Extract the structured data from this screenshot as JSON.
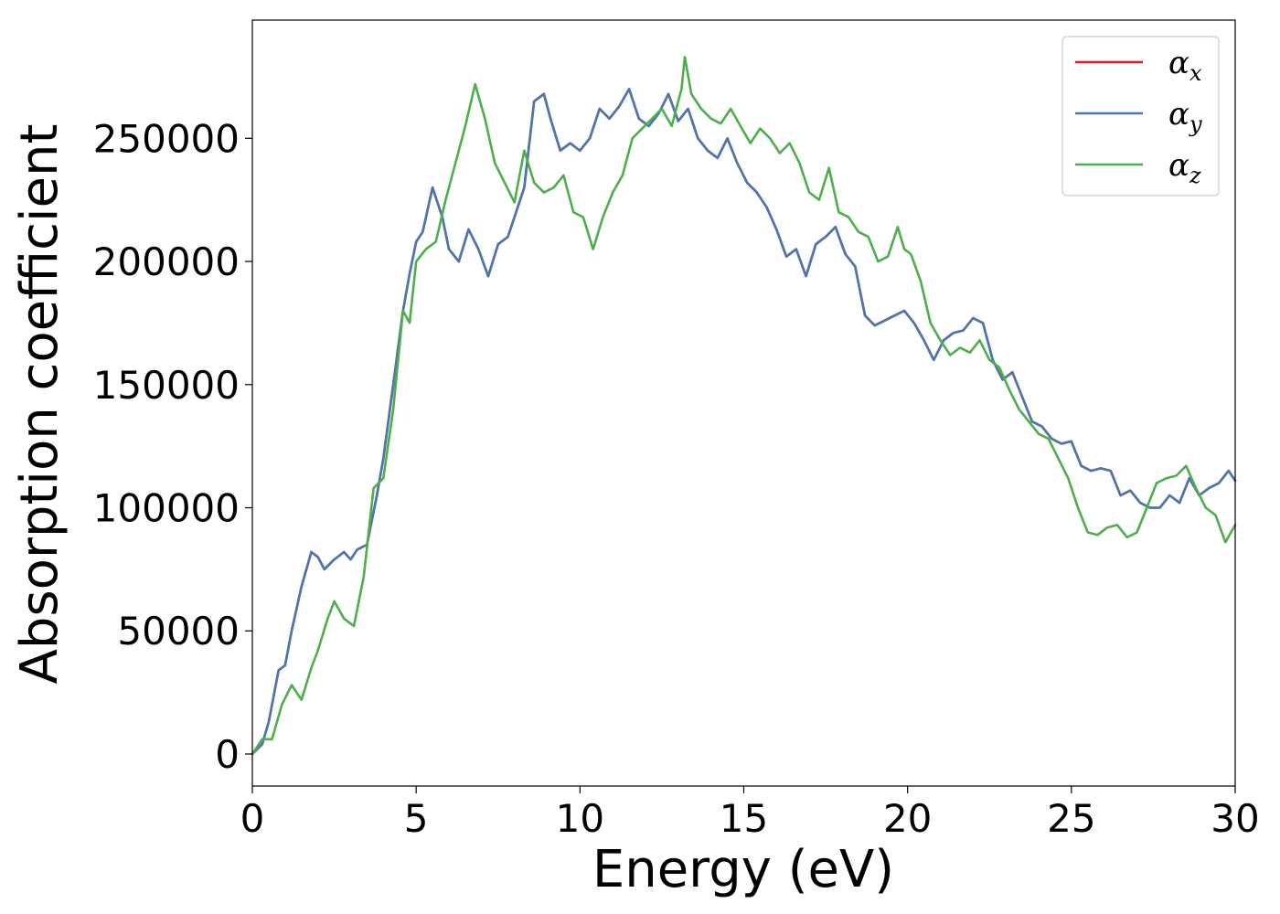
{
  "chart_data": {
    "type": "line",
    "title": "",
    "xlabel": "Energy (eV)",
    "ylabel": "Absorption coefficient",
    "xlim": [
      0,
      30
    ],
    "ylim": [
      -13000,
      298000
    ],
    "xticks": [
      0,
      5,
      10,
      15,
      20,
      25,
      30
    ],
    "xtick_labels": [
      "0",
      "5",
      "10",
      "15",
      "20",
      "25",
      "30"
    ],
    "yticks": [
      0,
      50000,
      100000,
      150000,
      200000,
      250000
    ],
    "ytick_labels": [
      "0",
      "50000",
      "100000",
      "150000",
      "200000",
      "250000"
    ],
    "grid": false,
    "legend_position": "top-right",
    "series": [
      {
        "name": "α",
        "subscript": "x",
        "color": "#e41a1c",
        "hidden_under": "α_y",
        "x": [
          0,
          0.3,
          0.5,
          0.8,
          1.0,
          1.2,
          1.5,
          1.8,
          2.0,
          2.2,
          2.5,
          2.8,
          3.0,
          3.2,
          3.5,
          3.8,
          4.0,
          4.3,
          4.6,
          4.8,
          5.0,
          5.2,
          5.5,
          5.8,
          6.0,
          6.3,
          6.6,
          6.9,
          7.2,
          7.5,
          7.8,
          8.0,
          8.3,
          8.6,
          8.9,
          9.1,
          9.4,
          9.7,
          10.0,
          10.3,
          10.6,
          10.9,
          11.2,
          11.5,
          11.8,
          12.1,
          12.4,
          12.7,
          13.0,
          13.3,
          13.6,
          13.9,
          14.2,
          14.5,
          14.8,
          15.1,
          15.4,
          15.7,
          16.0,
          16.3,
          16.6,
          16.9,
          17.2,
          17.5,
          17.8,
          18.1,
          18.4,
          18.7,
          19.0,
          19.3,
          19.6,
          19.9,
          20.2,
          20.5,
          20.8,
          21.1,
          21.4,
          21.7,
          22.0,
          22.3,
          22.6,
          22.9,
          23.2,
          23.5,
          23.8,
          24.1,
          24.4,
          24.7,
          25.0,
          25.3,
          25.6,
          25.9,
          26.2,
          26.5,
          26.8,
          27.1,
          27.4,
          27.7,
          28.0,
          28.3,
          28.6,
          28.9,
          29.2,
          29.5,
          29.8,
          30.0
        ],
        "values": [
          0,
          4000,
          13000,
          34000,
          36000,
          50000,
          68000,
          82000,
          80000,
          75000,
          79000,
          82000,
          79000,
          83000,
          85000,
          105000,
          120000,
          150000,
          180000,
          195000,
          208000,
          212000,
          230000,
          218000,
          205000,
          200000,
          213000,
          205000,
          194000,
          207000,
          210000,
          218000,
          230000,
          265000,
          268000,
          258000,
          245000,
          248000,
          245000,
          250000,
          262000,
          258000,
          263000,
          270000,
          258000,
          255000,
          260000,
          268000,
          257000,
          262000,
          250000,
          245000,
          242000,
          250000,
          240000,
          232000,
          228000,
          222000,
          213000,
          202000,
          205000,
          194000,
          207000,
          210000,
          214000,
          203000,
          198000,
          178000,
          174000,
          176000,
          178000,
          180000,
          175000,
          168000,
          160000,
          168000,
          171000,
          172000,
          177000,
          175000,
          160000,
          152000,
          155000,
          145000,
          135000,
          133000,
          128000,
          126000,
          127000,
          117000,
          115000,
          116000,
          115000,
          105000,
          107000,
          102000,
          100000,
          100000,
          105000,
          102000,
          112000,
          105000,
          108000,
          110000,
          115000,
          111000
        ]
      },
      {
        "name": "α",
        "subscript": "y",
        "color": "#4878b0",
        "x": [
          0,
          0.3,
          0.5,
          0.8,
          1.0,
          1.2,
          1.5,
          1.8,
          2.0,
          2.2,
          2.5,
          2.8,
          3.0,
          3.2,
          3.5,
          3.8,
          4.0,
          4.3,
          4.6,
          4.8,
          5.0,
          5.2,
          5.5,
          5.8,
          6.0,
          6.3,
          6.6,
          6.9,
          7.2,
          7.5,
          7.8,
          8.0,
          8.3,
          8.6,
          8.9,
          9.1,
          9.4,
          9.7,
          10.0,
          10.3,
          10.6,
          10.9,
          11.2,
          11.5,
          11.8,
          12.1,
          12.4,
          12.7,
          13.0,
          13.3,
          13.6,
          13.9,
          14.2,
          14.5,
          14.8,
          15.1,
          15.4,
          15.7,
          16.0,
          16.3,
          16.6,
          16.9,
          17.2,
          17.5,
          17.8,
          18.1,
          18.4,
          18.7,
          19.0,
          19.3,
          19.6,
          19.9,
          20.2,
          20.5,
          20.8,
          21.1,
          21.4,
          21.7,
          22.0,
          22.3,
          22.6,
          22.9,
          23.2,
          23.5,
          23.8,
          24.1,
          24.4,
          24.7,
          25.0,
          25.3,
          25.6,
          25.9,
          26.2,
          26.5,
          26.8,
          27.1,
          27.4,
          27.7,
          28.0,
          28.3,
          28.6,
          28.9,
          29.2,
          29.5,
          29.8,
          30.0
        ],
        "values": [
          0,
          4000,
          13000,
          34000,
          36000,
          50000,
          68000,
          82000,
          80000,
          75000,
          79000,
          82000,
          79000,
          83000,
          85000,
          105000,
          120000,
          150000,
          180000,
          195000,
          208000,
          212000,
          230000,
          218000,
          205000,
          200000,
          213000,
          205000,
          194000,
          207000,
          210000,
          218000,
          230000,
          265000,
          268000,
          258000,
          245000,
          248000,
          245000,
          250000,
          262000,
          258000,
          263000,
          270000,
          258000,
          255000,
          260000,
          268000,
          257000,
          262000,
          250000,
          245000,
          242000,
          250000,
          240000,
          232000,
          228000,
          222000,
          213000,
          202000,
          205000,
          194000,
          207000,
          210000,
          214000,
          203000,
          198000,
          178000,
          174000,
          176000,
          178000,
          180000,
          175000,
          168000,
          160000,
          168000,
          171000,
          172000,
          177000,
          175000,
          160000,
          152000,
          155000,
          145000,
          135000,
          133000,
          128000,
          126000,
          127000,
          117000,
          115000,
          116000,
          115000,
          105000,
          107000,
          102000,
          100000,
          100000,
          105000,
          102000,
          112000,
          105000,
          108000,
          110000,
          115000,
          111000
        ]
      },
      {
        "name": "α",
        "subscript": "z",
        "color": "#4daf4a",
        "x": [
          0,
          0.3,
          0.6,
          0.9,
          1.2,
          1.5,
          1.8,
          2.0,
          2.3,
          2.5,
          2.8,
          3.1,
          3.4,
          3.7,
          4.0,
          4.3,
          4.6,
          4.8,
          5.0,
          5.3,
          5.6,
          5.9,
          6.2,
          6.5,
          6.8,
          7.1,
          7.4,
          7.7,
          8.0,
          8.3,
          8.6,
          8.9,
          9.2,
          9.5,
          9.8,
          10.1,
          10.4,
          10.7,
          11.0,
          11.3,
          11.6,
          11.9,
          12.2,
          12.5,
          12.8,
          13.1,
          13.2,
          13.4,
          13.7,
          14.0,
          14.3,
          14.6,
          14.9,
          15.2,
          15.5,
          15.8,
          16.1,
          16.4,
          16.7,
          17.0,
          17.3,
          17.6,
          17.9,
          18.2,
          18.5,
          18.8,
          19.1,
          19.4,
          19.7,
          19.9,
          20.1,
          20.4,
          20.7,
          21.0,
          21.3,
          21.6,
          21.9,
          22.2,
          22.5,
          22.8,
          23.1,
          23.4,
          23.7,
          24.0,
          24.3,
          24.6,
          24.9,
          25.2,
          25.5,
          25.8,
          26.1,
          26.4,
          26.7,
          27.0,
          27.3,
          27.6,
          27.9,
          28.2,
          28.5,
          28.8,
          29.1,
          29.4,
          29.7,
          30.0
        ],
        "values": [
          0,
          6000,
          6000,
          20000,
          28000,
          22000,
          35000,
          42000,
          55000,
          62000,
          55000,
          52000,
          72000,
          108000,
          112000,
          140000,
          180000,
          175000,
          200000,
          205000,
          208000,
          225000,
          240000,
          255000,
          272000,
          258000,
          240000,
          232000,
          224000,
          245000,
          232000,
          228000,
          230000,
          235000,
          220000,
          218000,
          205000,
          218000,
          228000,
          235000,
          250000,
          254000,
          258000,
          262000,
          255000,
          270000,
          283000,
          268000,
          262000,
          258000,
          256000,
          262000,
          255000,
          248000,
          254000,
          250000,
          244000,
          248000,
          240000,
          228000,
          225000,
          238000,
          220000,
          218000,
          212000,
          210000,
          200000,
          202000,
          214000,
          205000,
          203000,
          192000,
          175000,
          168000,
          162000,
          165000,
          163000,
          168000,
          160000,
          157000,
          148000,
          140000,
          135000,
          130000,
          128000,
          120000,
          112000,
          100000,
          90000,
          89000,
          92000,
          93000,
          88000,
          90000,
          100000,
          110000,
          112000,
          113000,
          117000,
          108000,
          100000,
          97000,
          86000,
          93000
        ]
      }
    ]
  }
}
